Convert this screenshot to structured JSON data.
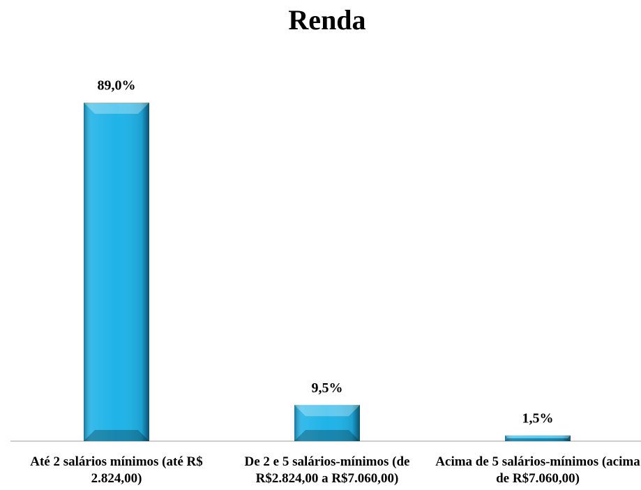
{
  "chart_data": {
    "type": "bar",
    "title": "Renda",
    "categories": [
      "Até 2 salários mínimos (até R$ 2.824,00)",
      "De 2 e 5 salários-mínimos (de R$2.824,00 a R$7.060,00)",
      "Acima de 5 salários-mínimos (acima de R$7.060,00)"
    ],
    "values": [
      89.0,
      9.5,
      1.5
    ],
    "value_labels": [
      "89,0%",
      "9,5%",
      "1,5%"
    ],
    "color": "#1fb3e8"
  }
}
